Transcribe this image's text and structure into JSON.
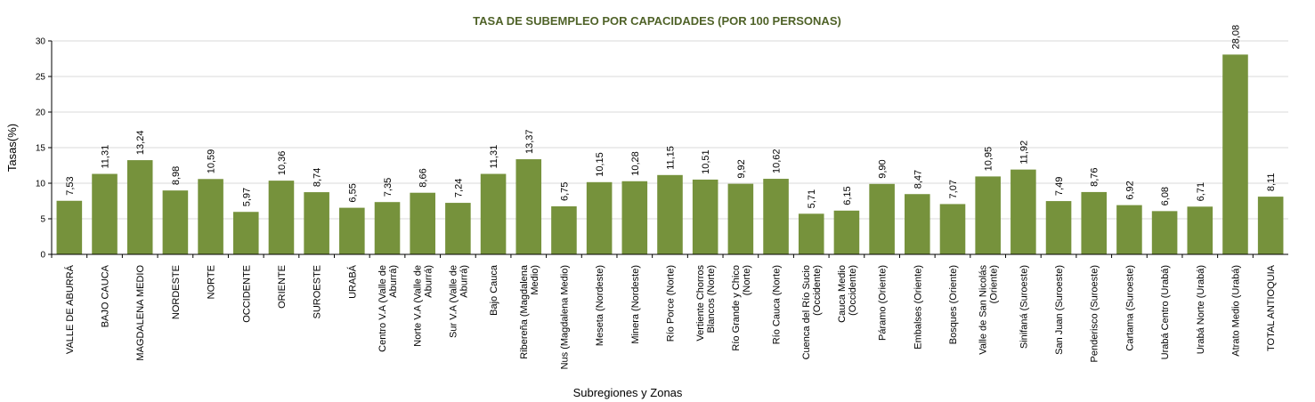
{
  "chart_data": {
    "type": "bar",
    "title": "TASA DE SUBEMPLEO POR CAPACIDADES (POR 100 PERSONAS)",
    "xlabel": "Subregiones y Zonas",
    "ylabel": "Tasas(%)",
    "ylim": [
      0,
      30
    ],
    "yticks": [
      "0",
      "5",
      "10",
      "15",
      "20",
      "25",
      "30"
    ],
    "grid": true,
    "bar_color": "#76923c",
    "title_color": "#4f6228",
    "categories": [
      [
        "VALLE DE ABURRÁ"
      ],
      [
        "BAJO CAUCA"
      ],
      [
        "MAGDALENA MEDIO"
      ],
      [
        "NORDESTE"
      ],
      [
        "NORTE"
      ],
      [
        "OCCIDENTE"
      ],
      [
        "ORIENTE"
      ],
      [
        "SUROESTE"
      ],
      [
        "URABÁ"
      ],
      [
        "Centro V.A (Valle de",
        "Aburrá)"
      ],
      [
        "Norte V.A (Valle de",
        "Aburrá)"
      ],
      [
        "Sur  V.A (Valle de",
        "Aburrá)"
      ],
      [
        "Bajo Cauca"
      ],
      [
        "Ribereña  (Magdalena",
        "Medio)"
      ],
      [
        "Nus  (Magdalena Medio)"
      ],
      [
        "Meseta  (Nordeste)"
      ],
      [
        "Minera  (Nordeste)"
      ],
      [
        "Río Porce   (Norte)"
      ],
      [
        "Vertiente Chorros",
        "Blancos (Norte)"
      ],
      [
        "Río Grande y Chico",
        "(Norte)"
      ],
      [
        "Río Cauca  (Norte)"
      ],
      [
        "Cuenca del Río Sucio",
        "(Occidente)"
      ],
      [
        "Cauca Medio",
        "(Occidente)"
      ],
      [
        "Páramo  (Oriente)"
      ],
      [
        "Embalses  (Oriente)"
      ],
      [
        "Bosques  (Oriente)"
      ],
      [
        "Valle de San Nicolás",
        "(Oriente)"
      ],
      [
        "Sinifaná (Suroeste)"
      ],
      [
        "San Juan  (Suroeste)"
      ],
      [
        "Penderisco  (Suroeste)"
      ],
      [
        "Cartama  (Suroeste)"
      ],
      [
        "Urabá Centro  (Urabá)"
      ],
      [
        "Urabá Norte  (Urabá)"
      ],
      [
        "Atrato Medio  (Urabá)"
      ],
      [
        "TOTAL ANTIOQUIA"
      ]
    ],
    "values": [
      7.53,
      11.31,
      13.24,
      8.98,
      10.59,
      5.97,
      10.36,
      8.74,
      6.55,
      7.35,
      8.66,
      7.24,
      11.31,
      13.37,
      6.75,
      10.15,
      10.28,
      11.15,
      10.51,
      9.92,
      10.62,
      5.71,
      6.15,
      9.9,
      8.47,
      7.07,
      10.95,
      11.92,
      7.49,
      8.76,
      6.92,
      6.08,
      6.71,
      28.08,
      8.11
    ],
    "value_labels": [
      "7,53",
      "11,31",
      "13,24",
      "8,98",
      "10,59",
      "5,97",
      "10,36",
      "8,74",
      "6,55",
      "7,35",
      "8,66",
      "7,24",
      "11,31",
      "13,37",
      "6,75",
      "10,15",
      "10,28",
      "11,15",
      "10,51",
      "9,92",
      "10,62",
      "5,71",
      "6,15",
      "9,90",
      "8,47",
      "7,07",
      "10,95",
      "11,92",
      "7,49",
      "8,76",
      "6,92",
      "6,08",
      "6,71",
      "28,08",
      "8,11"
    ]
  }
}
